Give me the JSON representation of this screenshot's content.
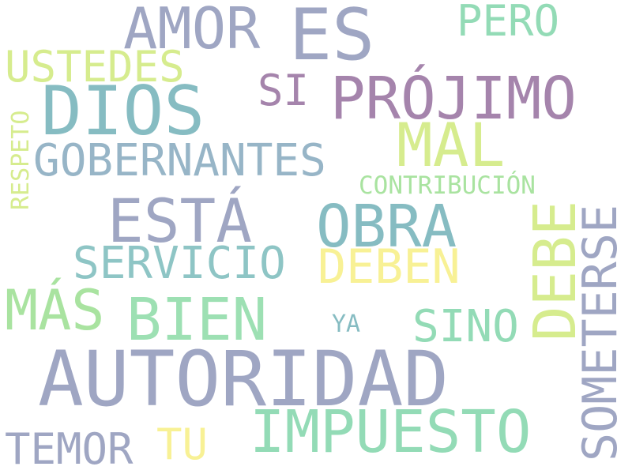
{
  "words": [
    {
      "id": "autoridad",
      "text": "AUTORIDAD",
      "color": "#9fa6c3"
    },
    {
      "id": "dios",
      "text": "DIOS",
      "color": "#86bcc2"
    },
    {
      "id": "es",
      "text": "ES",
      "color": "#9fa6c3"
    },
    {
      "id": "prójimo",
      "text": "PRÓJIMO",
      "color": "#a584ac"
    },
    {
      "id": "impuesto",
      "text": "IMPUESTO",
      "color": "#93dbb6"
    },
    {
      "id": "amor",
      "text": "AMOR",
      "color": "#9fa6c3"
    },
    {
      "id": "está",
      "text": "ESTÁ",
      "color": "#9fa6c3"
    },
    {
      "id": "obra",
      "text": "OBRA",
      "color": "#86bcc2"
    },
    {
      "id": "bien",
      "text": "BIEN",
      "color": "#9de0b3"
    },
    {
      "id": "mal",
      "text": "MAL",
      "color": "#d6ec8e"
    },
    {
      "id": "más",
      "text": "MÁS",
      "color": "#a9e3a0"
    },
    {
      "id": "gobernantes",
      "text": "GOBERNANTES",
      "color": "#97b5c7"
    },
    {
      "id": "deben",
      "text": "DEBEN",
      "color": "#f8f195"
    },
    {
      "id": "servicio",
      "text": "SERVICIO",
      "color": "#8ec5c5"
    },
    {
      "id": "sino",
      "text": "SINO",
      "color": "#93dbb6"
    },
    {
      "id": "ustedes",
      "text": "USTEDES",
      "color": "#d6ec8e"
    },
    {
      "id": "pero",
      "text": "PERO",
      "color": "#93dbb6"
    },
    {
      "id": "si",
      "text": "SI",
      "color": "#a584ac"
    },
    {
      "id": "temor",
      "text": "TEMOR",
      "color": "#9fa6c3"
    },
    {
      "id": "tu",
      "text": "TU",
      "color": "#f8f195"
    },
    {
      "id": "contribución",
      "text": "CONTRIBUCIÓN",
      "color": "#a9e3a0"
    },
    {
      "id": "ya",
      "text": "YA",
      "color": "#86bcc2"
    },
    {
      "id": "debe",
      "text": "DEBE",
      "color": "#d6ec8e"
    },
    {
      "id": "someterse",
      "text": "SOMETERSE",
      "color": "#9fa6c3"
    },
    {
      "id": "respeto",
      "text": "RESPETO",
      "color": "#d6ec8e"
    }
  ]
}
